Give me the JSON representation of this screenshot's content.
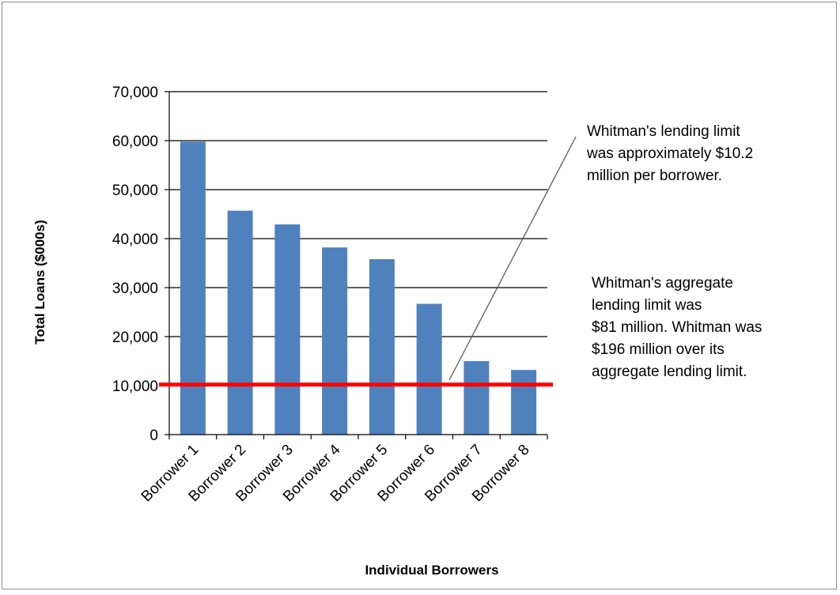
{
  "chart_data": {
    "type": "bar",
    "categories": [
      "Borrower 1",
      "Borrower 2",
      "Borrower 3",
      "Borrower 4",
      "Borrower 5",
      "Borrower 6",
      "Borrower 7",
      "Borrower 8"
    ],
    "values": [
      59800,
      45700,
      42900,
      38200,
      35800,
      26700,
      15000,
      13200
    ],
    "xlabel": "Individual Borrowers",
    "ylabel": "Total Loans ($000s)",
    "ylim": [
      0,
      70000
    ],
    "yticks": [
      "0",
      "10,000",
      "20,000",
      "30,000",
      "40,000",
      "50,000",
      "60,000",
      "70,000"
    ],
    "ytick_values": [
      0,
      10000,
      20000,
      30000,
      40000,
      50000,
      60000,
      70000
    ],
    "grid": true,
    "legend": "none",
    "reference_line": {
      "value": 10200
    },
    "annotations": [
      {
        "lines": [
          "Whitman's lending limit",
          "was approximately $10.2",
          "million per borrower."
        ]
      },
      {
        "lines": [
          "Whitman's aggregate",
          "lending limit was",
          "$81 million.  Whitman was",
          "$196 million over its",
          "aggregate lending limit."
        ]
      }
    ],
    "colors": {
      "bar": "#4f81bd",
      "reference_line": "#ff0000",
      "grid": "#000000"
    }
  }
}
